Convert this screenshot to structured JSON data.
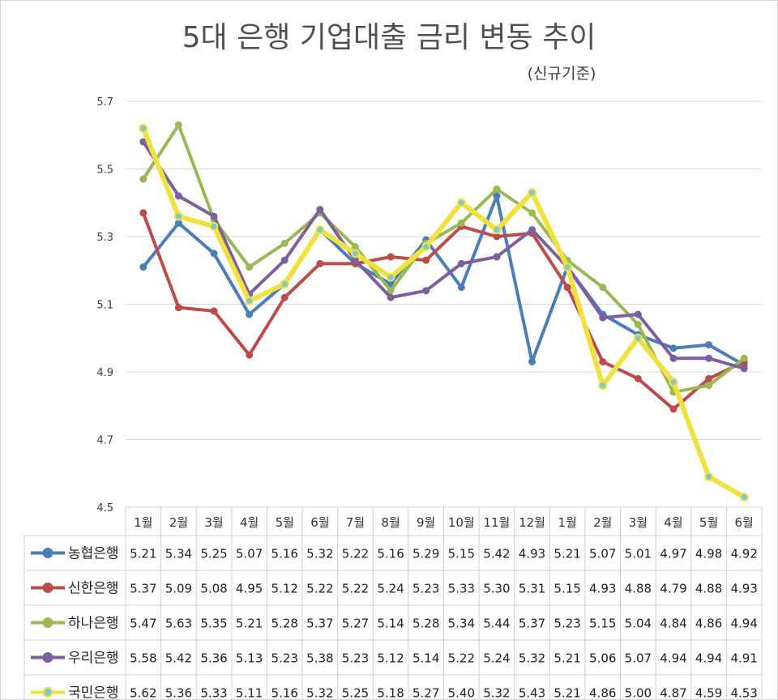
{
  "chart_data": {
    "type": "line",
    "title": "5대 은행 기업대출 금리 변동 추이",
    "subtitle": "(신규기준)",
    "categories": [
      "1월",
      "2월",
      "3월",
      "4월",
      "5월",
      "6월",
      "7월",
      "8월",
      "9월",
      "10월",
      "11월",
      "12월",
      "1월",
      "2월",
      "3월",
      "4월",
      "5월",
      "6월"
    ],
    "ylim": [
      4.5,
      5.7
    ],
    "yticks": [
      "4.5",
      "4.7",
      "4.9",
      "5.1",
      "5.3",
      "5.5",
      "5.7"
    ],
    "grid": true,
    "data_table": true,
    "series": [
      {
        "name": "농협은행",
        "color": "#4a7ebb",
        "values": [
          5.21,
          5.34,
          5.25,
          5.07,
          5.16,
          5.32,
          5.22,
          5.16,
          5.29,
          5.15,
          5.42,
          4.93,
          5.21,
          5.07,
          5.01,
          4.97,
          4.98,
          4.92
        ],
        "labels": [
          "5.21",
          "5.34",
          "5.25",
          "5.07",
          "5.16",
          "5.32",
          "5.22",
          "5.16",
          "5.29",
          "5.15",
          "5.42",
          "4.93",
          "5.21",
          "5.07",
          "5.01",
          "4.97",
          "4.98",
          "4.92"
        ]
      },
      {
        "name": "신한은행",
        "color": "#be4b48",
        "values": [
          5.37,
          5.09,
          5.08,
          4.95,
          5.12,
          5.22,
          5.22,
          5.24,
          5.23,
          5.33,
          5.3,
          5.31,
          5.15,
          4.93,
          4.88,
          4.79,
          4.88,
          4.93
        ],
        "labels": [
          "5.37",
          "5.09",
          "5.08",
          "4.95",
          "5.12",
          "5.22",
          "5.22",
          "5.24",
          "5.23",
          "5.33",
          "5.30",
          "5.31",
          "5.15",
          "4.93",
          "4.88",
          "4.79",
          "4.88",
          "4.93"
        ]
      },
      {
        "name": "하나은행",
        "color": "#98b954",
        "values": [
          5.47,
          5.63,
          5.35,
          5.21,
          5.28,
          5.37,
          5.27,
          5.14,
          5.28,
          5.34,
          5.44,
          5.37,
          5.23,
          5.15,
          5.04,
          4.84,
          4.86,
          4.94
        ],
        "labels": [
          "5.47",
          "5.63",
          "5.35",
          "5.21",
          "5.28",
          "5.37",
          "5.27",
          "5.14",
          "5.28",
          "5.34",
          "5.44",
          "5.37",
          "5.23",
          "5.15",
          "5.04",
          "4.84",
          "4.86",
          "4.94"
        ]
      },
      {
        "name": "우리은행",
        "color": "#7d5fa0",
        "values": [
          5.58,
          5.42,
          5.36,
          5.13,
          5.23,
          5.38,
          5.23,
          5.12,
          5.14,
          5.22,
          5.24,
          5.32,
          5.21,
          5.06,
          5.07,
          4.94,
          4.94,
          4.91
        ],
        "labels": [
          "5.58",
          "5.42",
          "5.36",
          "5.13",
          "5.23",
          "5.38",
          "5.23",
          "5.12",
          "5.14",
          "5.22",
          "5.24",
          "5.32",
          "5.21",
          "5.06",
          "5.07",
          "4.94",
          "4.94",
          "4.91"
        ]
      },
      {
        "name": "국민은행",
        "color": "#f0e23a",
        "marker_fill": "#7ec8d6",
        "values": [
          5.62,
          5.36,
          5.33,
          5.11,
          5.16,
          5.32,
          5.25,
          5.18,
          5.27,
          5.4,
          5.32,
          5.43,
          5.21,
          4.86,
          5.0,
          4.87,
          4.59,
          4.53
        ],
        "labels": [
          "5.62",
          "5.36",
          "5.33",
          "5.11",
          "5.16",
          "5.32",
          "5.25",
          "5.18",
          "5.27",
          "5.40",
          "5.32",
          "5.43",
          "5.21",
          "4.86",
          "5.00",
          "4.87",
          "4.59",
          "4.53"
        ]
      }
    ]
  }
}
